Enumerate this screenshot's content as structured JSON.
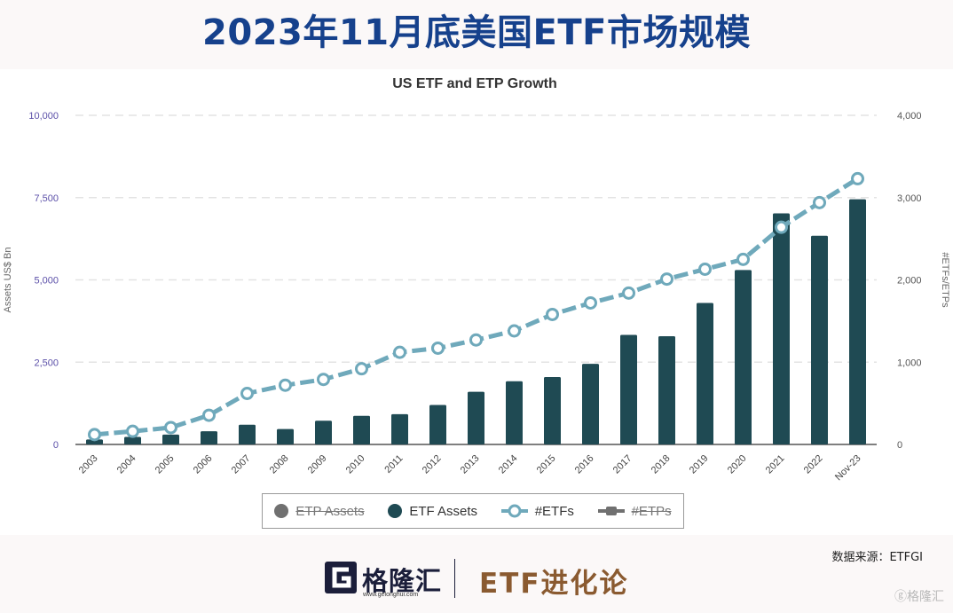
{
  "header": {
    "title": "2023年11月底美国ETF市场规模"
  },
  "chart_data": {
    "type": "bar",
    "title": "US ETF and ETP Growth",
    "ylabel": "Assets US$ Bn",
    "y2label": "#ETFs/ETPs",
    "ylim": [
      0,
      10000
    ],
    "y2lim": [
      0,
      4000
    ],
    "yticks": [
      "0",
      "2,500",
      "5,000",
      "7,500",
      "10,000"
    ],
    "y2ticks": [
      "0",
      "1,000",
      "2,000",
      "3,000",
      "4,000"
    ],
    "categories": [
      "2003",
      "2004",
      "2005",
      "2006",
      "2007",
      "2008",
      "2009",
      "2010",
      "2011",
      "2012",
      "2013",
      "2014",
      "2015",
      "2016",
      "2017",
      "2018",
      "2019",
      "2020",
      "2021",
      "2022",
      "Nov-23"
    ],
    "series": [
      {
        "name": "ETF Assets",
        "type": "bar",
        "axis": "left",
        "color": "#1f4a53",
        "values": [
          150,
          230,
          300,
          400,
          600,
          470,
          720,
          870,
          920,
          1200,
          1600,
          1920,
          2050,
          2450,
          3330,
          3290,
          4300,
          5300,
          7020,
          6340,
          7450
        ]
      },
      {
        "name": "#ETFs",
        "type": "line",
        "axis": "right",
        "color": "#6fa9bb",
        "values": [
          120,
          160,
          205,
          355,
          620,
          720,
          790,
          920,
          1120,
          1170,
          1270,
          1380,
          1580,
          1720,
          1840,
          2010,
          2130,
          2250,
          2640,
          2940,
          3230
        ]
      }
    ],
    "legend": {
      "placement": "bottom",
      "items": [
        {
          "label": "ETP Assets",
          "color": "#707070",
          "shape": "dot",
          "hidden": true
        },
        {
          "label": "ETF Assets",
          "color": "#1f4a53",
          "shape": "dot",
          "hidden": false
        },
        {
          "label": "#ETFs",
          "color": "#6fa9bb",
          "shape": "ring",
          "hidden": false
        },
        {
          "label": "#ETPs",
          "color": "#707070",
          "shape": "line",
          "hidden": true
        }
      ]
    },
    "grid": true
  },
  "footer": {
    "source": "数据来源：ETFGI",
    "brand": "格隆汇",
    "brand_url": "www.gelonghui.com",
    "column": "ETF进化论",
    "watermark": "格隆汇"
  }
}
